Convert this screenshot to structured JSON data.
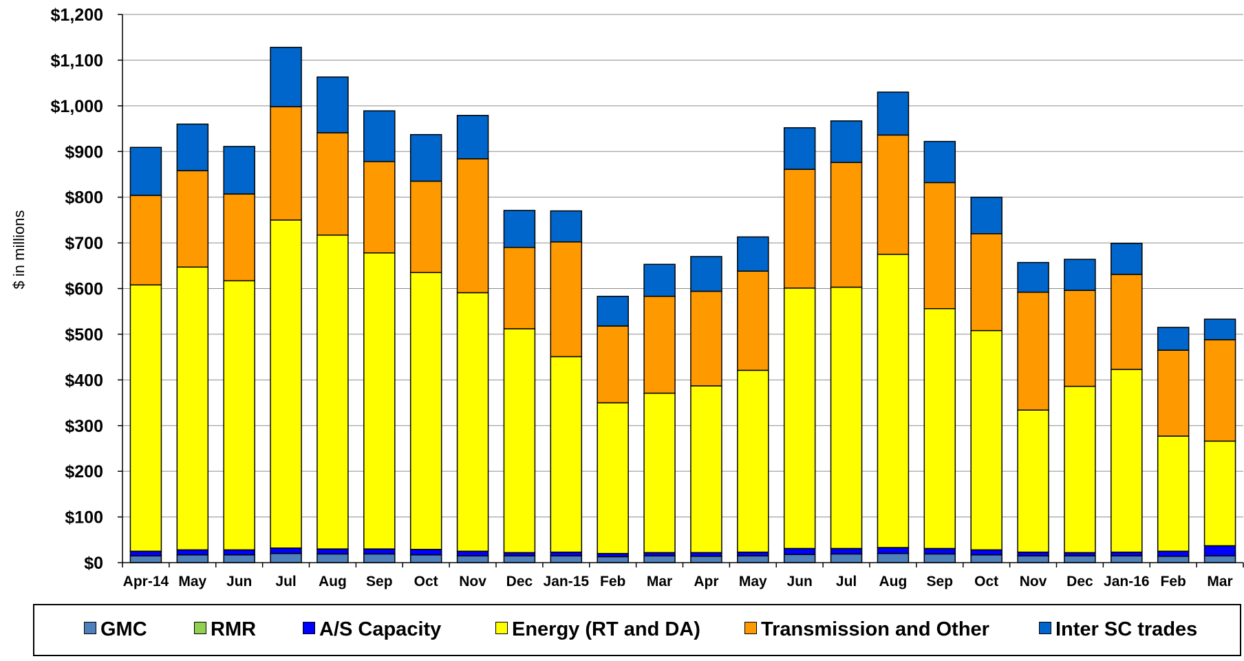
{
  "chart_data": {
    "type": "bar",
    "stacked": true,
    "title": "",
    "ylabel": "$ in millions",
    "xlabel": "",
    "ylim": [
      0,
      1200
    ],
    "yticks": [
      0,
      100,
      200,
      300,
      400,
      500,
      600,
      700,
      800,
      900,
      1000,
      1100,
      1200
    ],
    "ytick_labels": [
      "$0",
      "$100",
      "$200",
      "$300",
      "$400",
      "$500",
      "$600",
      "$700",
      "$800",
      "$900",
      "$1,000",
      "$1,100",
      "$1,200"
    ],
    "grid": true,
    "legend_position": "bottom",
    "categories": [
      "Apr-14",
      "May",
      "Jun",
      "Jul",
      "Aug",
      "Sep",
      "Oct",
      "Nov",
      "Dec",
      "Jan-15",
      "Feb",
      "Mar",
      "Apr",
      "May",
      "Jun",
      "Jul",
      "Aug",
      "Sep",
      "Oct",
      "Nov",
      "Dec",
      "Jan-16",
      "Feb",
      "Mar"
    ],
    "series": [
      {
        "name": "GMC",
        "color": "#4f81bd",
        "values": [
          15,
          17,
          17,
          20,
          19,
          19,
          17,
          15,
          15,
          15,
          13,
          15,
          14,
          15,
          18,
          19,
          20,
          19,
          17,
          15,
          15,
          15,
          14,
          15
        ]
      },
      {
        "name": "RMR",
        "color": "#92d050",
        "values": [
          0,
          0,
          0,
          0,
          0,
          0,
          0,
          0,
          0,
          0,
          0,
          0,
          0,
          0,
          0,
          0,
          0,
          0,
          0,
          0,
          0,
          0,
          0,
          0
        ]
      },
      {
        "name": "A/S Capacity",
        "color": "#0000ff",
        "values": [
          10,
          11,
          11,
          12,
          11,
          11,
          12,
          10,
          7,
          8,
          7,
          7,
          8,
          8,
          13,
          12,
          13,
          12,
          11,
          8,
          7,
          8,
          11,
          22
        ]
      },
      {
        "name": "Energy (RT and DA)",
        "color": "#ffff00",
        "values": [
          583,
          619,
          589,
          718,
          687,
          648,
          606,
          566,
          490,
          428,
          330,
          349,
          365,
          398,
          570,
          572,
          642,
          525,
          480,
          311,
          364,
          400,
          252,
          229
        ]
      },
      {
        "name": "Transmission and Other",
        "color": "#ff9900",
        "values": [
          196,
          211,
          190,
          248,
          224,
          200,
          200,
          293,
          178,
          251,
          168,
          212,
          207,
          217,
          260,
          273,
          261,
          276,
          212,
          258,
          210,
          208,
          188,
          222
        ]
      },
      {
        "name": "Inter SC trades",
        "color": "#0066cc",
        "values": [
          105,
          102,
          104,
          130,
          122,
          111,
          102,
          95,
          81,
          68,
          65,
          70,
          76,
          75,
          91,
          91,
          94,
          90,
          80,
          65,
          68,
          68,
          50,
          45
        ]
      }
    ]
  }
}
